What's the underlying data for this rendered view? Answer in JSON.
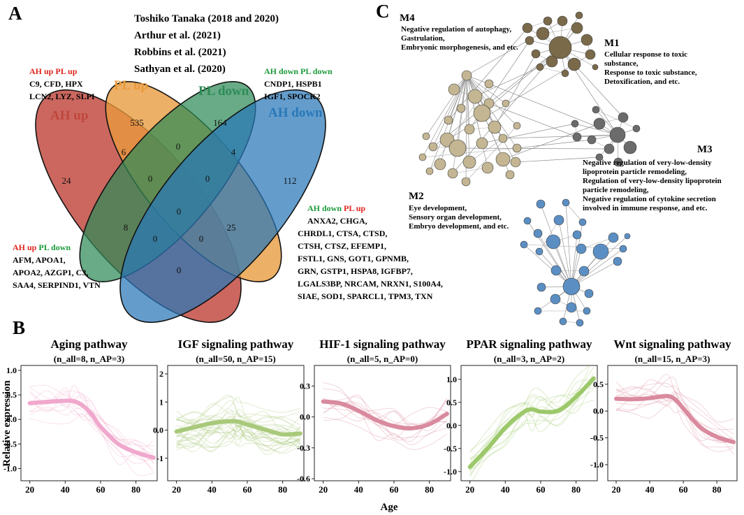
{
  "panelA": {
    "letter": "A",
    "sources": [
      "Toshiko Tanaka (2018 and 2020)",
      "Arthur et al. (2021)",
      "Robbins et al. (2021)",
      "Sathyan et al. (2020)"
    ],
    "sets": {
      "ah_up": "AH up",
      "pl_up": "PL up",
      "pl_down": "PL down",
      "ah_down": "AH down"
    },
    "counts": {
      "pl_up_only": "535",
      "pl_down_only": "164",
      "ah_up_only": "24",
      "ah_down_only": "112",
      "ah_up_pl_up": "6",
      "pl_up_pl_down": "0",
      "pl_down_ah_down": "4",
      "ah_up_pl_up_pl_down": "0",
      "pl_up_pl_down_ah_down": "0",
      "all_four": "0",
      "ah_up_pl_down": "8",
      "pl_up_ah_down": "25",
      "ah_up_pl_down_ah_down": "0",
      "ah_up_pl_up_ah_down": "0",
      "ah_up_ah_down": "0"
    },
    "gene_lists": {
      "ah_up_pl_up": {
        "tag_a": "AH up",
        "tag_b": "PL up",
        "genes": [
          "C9, CFD, HPX",
          "LCN2, LYZ, SLPI"
        ]
      },
      "ah_down_pl_down": {
        "tag_a": "AH down",
        "tag_b": "PL down",
        "genes": [
          "CNDP1, HSPB1",
          "IGF1, SPOCK2"
        ]
      },
      "ah_up_pl_down": {
        "tag_a": "AH up",
        "tag_b": "PL down",
        "genes": [
          "AFM, APOA1,",
          "APOA2, AZGP1, C3,",
          "SAA4, SERPIND1, VTN"
        ]
      },
      "ah_down_pl_up": {
        "tag_a": "AH down",
        "tag_b": "PL up",
        "genes": [
          "ANXA2, CHGA,",
          "CHRDL1, CTSA, CTSD,",
          "CTSH, CTSZ, EFEMP1,",
          "FSTL1, GNS, GOT1, GPNMB,",
          "GRN, GSTP1, HSPA8, IGFBP7,",
          "LGALS3BP, NRCAM, NRXN1, S100A4,",
          "SIAE, SOD1, SPARCL1, TPM3, TXN"
        ]
      }
    },
    "colors": {
      "ah_up": "#c0463c",
      "pl_up": "#e89a3c",
      "pl_down": "#2e8b57",
      "ah_down": "#2877b8",
      "red_text": "#e0251e",
      "green_text": "#1c9a3a"
    }
  },
  "panelC": {
    "letter": "C",
    "modules": [
      {
        "id": "M4",
        "lines": [
          "Negative regulation of autophagy,",
          "Gastrulation,",
          "Embryonic morphogenesis, and etc."
        ]
      },
      {
        "id": "M1",
        "lines": [
          "Cellular response to toxic",
          "substance,",
          "Response to toxic substance,",
          "Detoxification, and etc."
        ]
      },
      {
        "id": "M3",
        "lines": [
          "Negative regulation of very-low-density",
          "lipoprotein particle remodeling,",
          "Regulation of very-low-density lipoprotein",
          "particle remodeling,",
          "Negative regulation of cytokine secretion",
          "involved in immune response, and etc."
        ]
      },
      {
        "id": "M2",
        "lines": [
          "Eye development,",
          "Sensory organ development,",
          "Embryo development, and etc."
        ]
      }
    ],
    "colors": {
      "M1": "#7a6a4a",
      "M2": "#c4b693",
      "M3": "#6b6b6b",
      "M4": "#5b8fc4"
    }
  },
  "panelB": {
    "letter": "B",
    "ylabel": "Relative expression",
    "xlabel": "Age"
  },
  "chart_data": [
    {
      "type": "line",
      "title": "Aging pathway",
      "subtitle": "(n_all=8,  n_AP=3)",
      "xlabel": "Age",
      "ylabel": "Relative expression",
      "xlim": [
        15,
        92
      ],
      "ylim": [
        -1.25,
        1.1
      ],
      "x_ticks": [
        20,
        40,
        60,
        80
      ],
      "y_ticks": [
        1.0,
        0.5,
        0.0,
        -0.5,
        -1.0
      ],
      "color": "#f0a8cc",
      "series": [
        {
          "name": "fit",
          "x": [
            20,
            30,
            40,
            45,
            50,
            55,
            60,
            70,
            80,
            90
          ],
          "y": [
            0.33,
            0.36,
            0.38,
            0.37,
            0.28,
            0.1,
            -0.15,
            -0.5,
            -0.67,
            -0.78
          ]
        }
      ]
    },
    {
      "type": "line",
      "title": "IGF signaling pathway",
      "subtitle": "(n_all=50, n_AP=15)",
      "xlabel": "Age",
      "ylabel": "Relative expression",
      "xlim": [
        15,
        92
      ],
      "ylim": [
        -1.8,
        2.3
      ],
      "x_ticks": [
        20,
        40,
        60,
        80
      ],
      "y_ticks": [
        2,
        1,
        0,
        -1
      ],
      "color": "#a8c97a",
      "series": [
        {
          "name": "fit",
          "x": [
            20,
            30,
            40,
            50,
            55,
            60,
            70,
            80,
            90
          ],
          "y": [
            -0.05,
            0.1,
            0.25,
            0.32,
            0.3,
            0.2,
            0.02,
            -0.15,
            -0.12
          ]
        }
      ]
    },
    {
      "type": "line",
      "title": "HIF-1 signaling pathway",
      "subtitle": "(n_all=5,  n_AP=0)",
      "xlabel": "Age",
      "ylabel": "Relative expression",
      "xlim": [
        15,
        92
      ],
      "ylim": [
        -0.62,
        0.5
      ],
      "x_ticks": [
        20,
        40,
        60,
        80
      ],
      "y_ticks": [
        0.3,
        0.0,
        -0.3,
        -0.6
      ],
      "color": "#d98a9e",
      "series": [
        {
          "name": "fit",
          "x": [
            20,
            30,
            40,
            50,
            60,
            70,
            80,
            90
          ],
          "y": [
            0.15,
            0.13,
            0.06,
            -0.03,
            -0.09,
            -0.11,
            -0.07,
            0.03
          ]
        }
      ]
    },
    {
      "type": "line",
      "title": "PPAR signaling pathway",
      "subtitle": "(n_all=3, n_AP=2)",
      "xlabel": "Age",
      "ylabel": "Relative expression",
      "xlim": [
        15,
        92
      ],
      "ylim": [
        -1.2,
        1.3
      ],
      "x_ticks": [
        20,
        40,
        60,
        80
      ],
      "y_ticks": [
        1.0,
        0.5,
        0.0,
        -0.5,
        -1.0
      ],
      "color": "#9cc86a",
      "series": [
        {
          "name": "fit",
          "x": [
            20,
            30,
            40,
            50,
            55,
            60,
            70,
            80,
            90
          ],
          "y": [
            -0.9,
            -0.5,
            -0.05,
            0.28,
            0.35,
            0.3,
            0.32,
            0.62,
            1.02
          ]
        }
      ]
    },
    {
      "type": "line",
      "title": "Wnt signaling pathway",
      "subtitle": "(n_all=15, n_AP=3)",
      "xlabel": "Age",
      "ylabel": "Relative expression",
      "xlim": [
        15,
        92
      ],
      "ylim": [
        -1.3,
        0.85
      ],
      "x_ticks": [
        20,
        40,
        60,
        80
      ],
      "y_ticks": [
        0.5,
        0.0,
        -0.5,
        -1.0
      ],
      "color": "#d98a9e",
      "series": [
        {
          "name": "fit",
          "x": [
            20,
            30,
            40,
            50,
            55,
            60,
            70,
            80,
            90
          ],
          "y": [
            0.23,
            0.22,
            0.24,
            0.28,
            0.22,
            0.05,
            -0.3,
            -0.48,
            -0.58
          ]
        }
      ]
    }
  ]
}
